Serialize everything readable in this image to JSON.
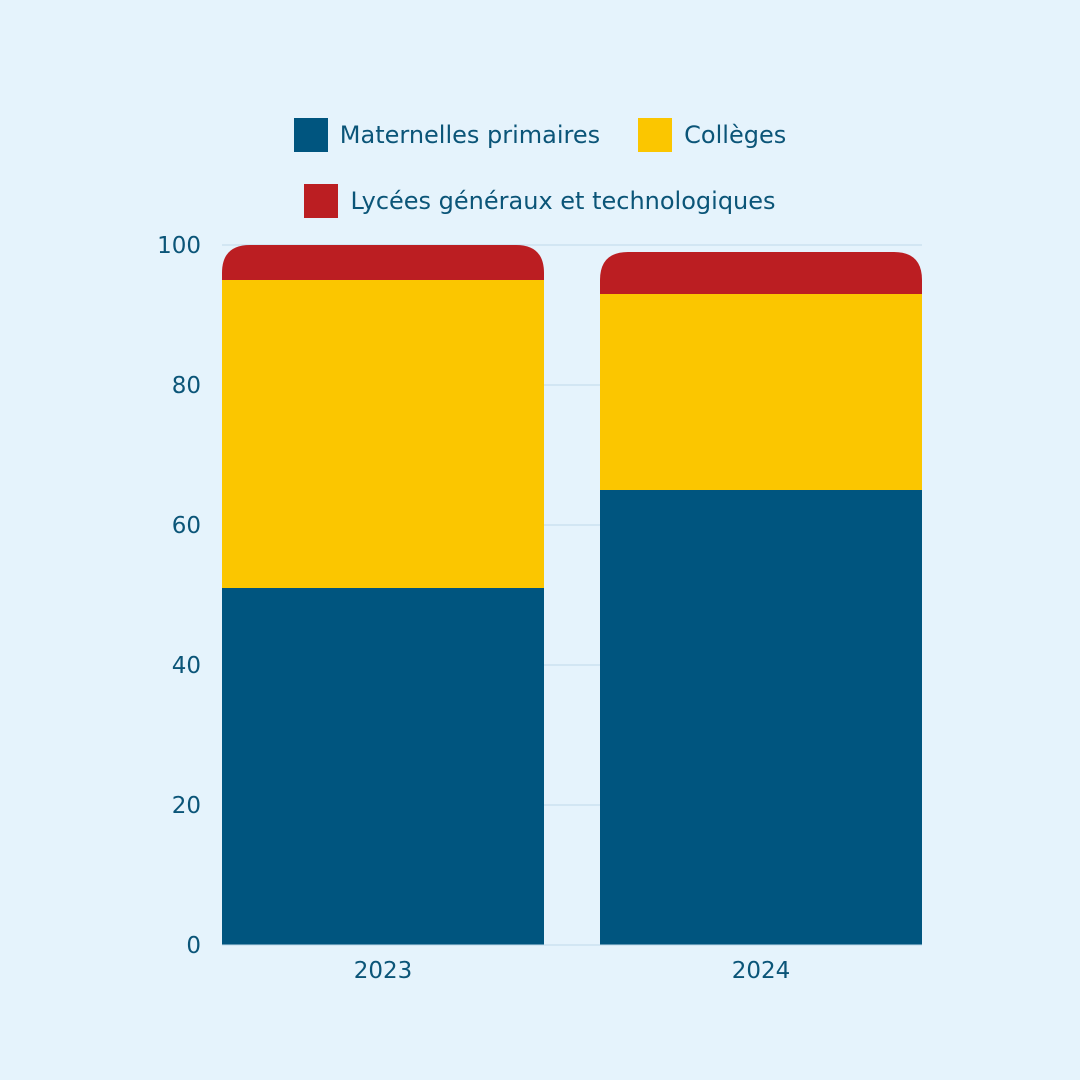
{
  "chart_data": {
    "type": "bar",
    "stacked": true,
    "categories": [
      "2023",
      "2024"
    ],
    "series": [
      {
        "name": "Maternelles primaires",
        "color": "#00557f",
        "values": [
          51,
          65
        ]
      },
      {
        "name": "Collèges",
        "color": "#fbc600",
        "values": [
          44,
          28
        ]
      },
      {
        "name": "Lycées généraux et technologiques",
        "color": "#bb1e22",
        "values": [
          5,
          6
        ]
      }
    ],
    "title": "",
    "xlabel": "",
    "ylabel": "",
    "ylim": [
      0,
      100
    ],
    "yticks": [
      "0",
      "20",
      "40",
      "60",
      "80",
      "100"
    ],
    "grid": true,
    "legend_position": "top-center"
  },
  "colors": {
    "background": "#e5f3fc",
    "text": "#0b5578",
    "grid": "#bfd9ea"
  }
}
